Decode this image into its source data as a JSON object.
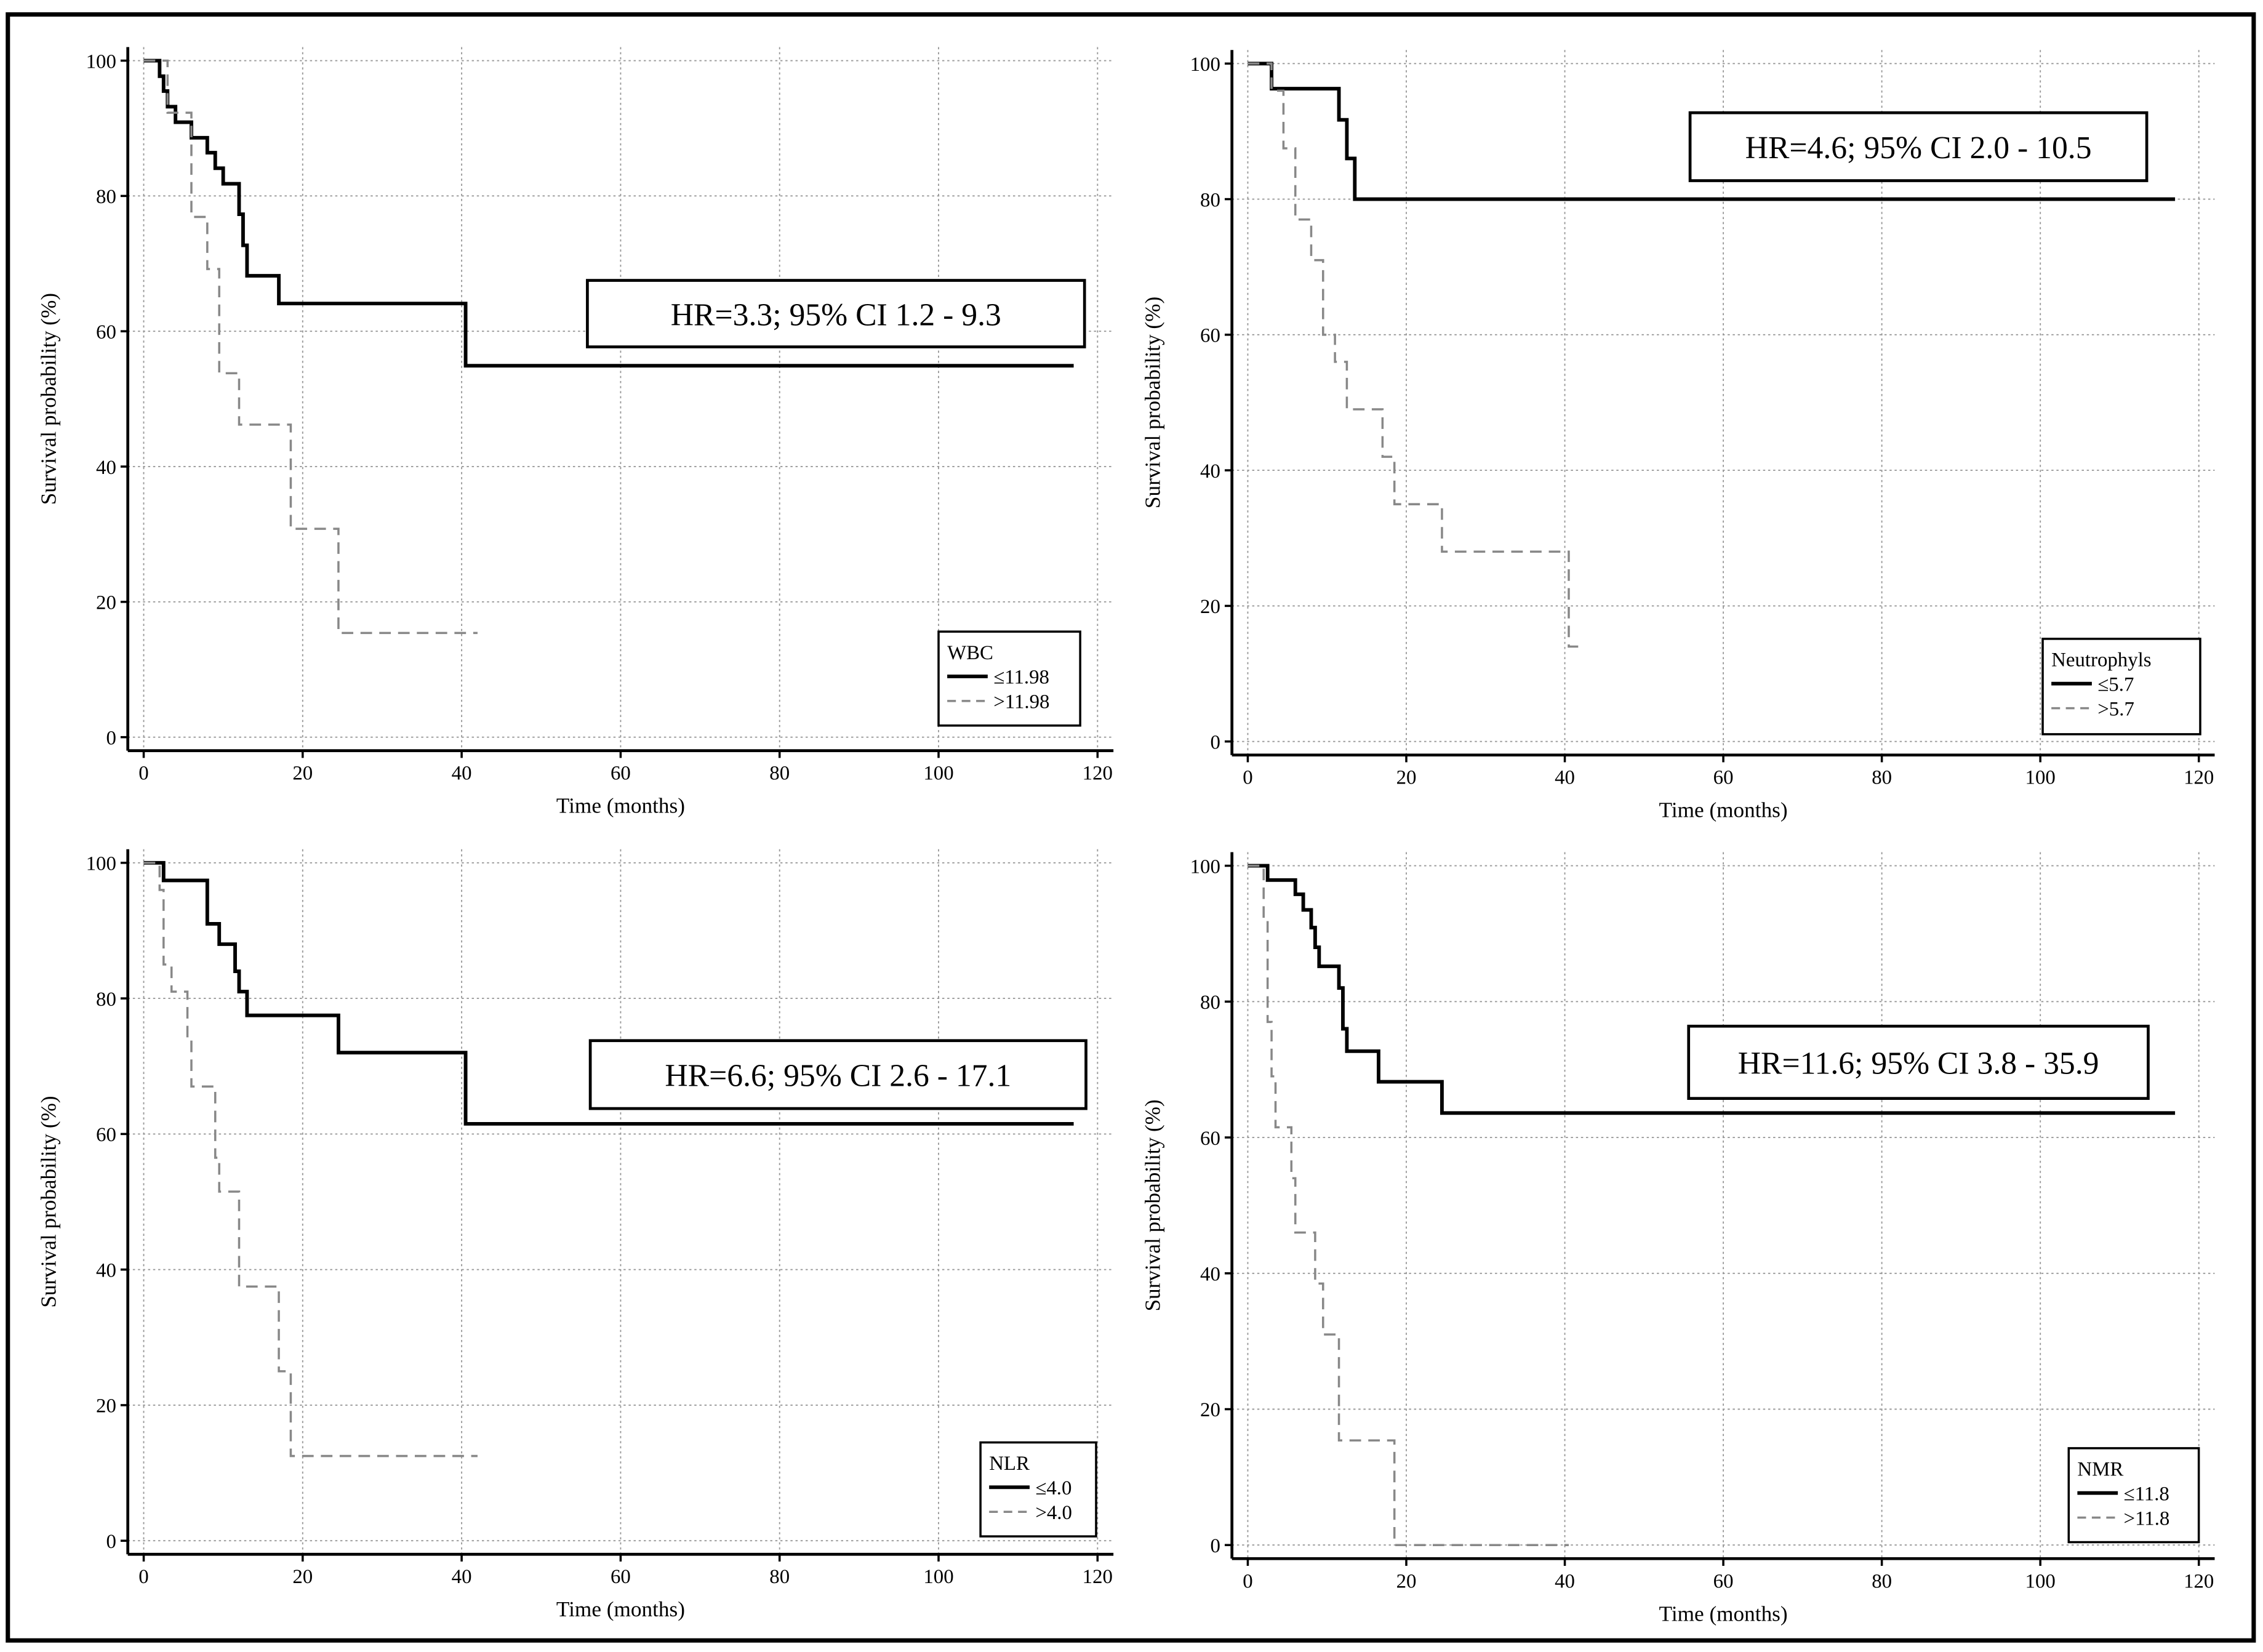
{
  "chart_data": [
    {
      "type": "line",
      "xlabel": "Time (months)",
      "ylabel": "Survival probability (%)",
      "xlim": [
        -2,
        122
      ],
      "ylim": [
        -2,
        102
      ],
      "xticks": [
        0,
        20,
        40,
        60,
        80,
        100,
        120
      ],
      "yticks": [
        0,
        20,
        40,
        60,
        80,
        100
      ],
      "grid": true,
      "annotation": "HR=3.3; 95% CI 1.2 - 9.3",
      "legend": "lower right",
      "legend_title": "WBC",
      "series": [
        {
          "name": "≤11.98",
          "color": "#000000",
          "linestyle": "solid",
          "x": [
            0,
            2,
            2.5,
            3,
            4,
            6,
            8,
            9,
            10,
            12,
            12.5,
            13,
            17,
            40.5,
            117
          ],
          "values": [
            100,
            97.7,
            95.5,
            93.2,
            90.9,
            88.6,
            86.4,
            84.1,
            81.8,
            77.3,
            72.7,
            68.2,
            64.1,
            54.9,
            54.9
          ]
        },
        {
          "name": ">11.98",
          "color": "#888888",
          "linestyle": "dashed",
          "x": [
            0,
            3,
            6,
            8,
            9.5,
            12,
            18.5,
            24.5,
            42
          ],
          "values": [
            100,
            92.3,
            76.9,
            69.2,
            53.8,
            46.2,
            30.8,
            15.4,
            15.4
          ]
        }
      ]
    },
    {
      "type": "line",
      "xlabel": "Time (months)",
      "ylabel": "Survival probability (%)",
      "xlim": [
        -2,
        122
      ],
      "ylim": [
        -2,
        102
      ],
      "xticks": [
        0,
        20,
        40,
        60,
        80,
        100,
        120
      ],
      "yticks": [
        0,
        20,
        40,
        60,
        80,
        100
      ],
      "grid": true,
      "annotation": "HR=4.6; 95% CI 2.0 - 10.5",
      "legend": "lower right",
      "legend_title": "Neutrophyls",
      "series": [
        {
          "name": "≤5.7",
          "color": "#000000",
          "linestyle": "solid",
          "x": [
            0,
            3,
            11.5,
            12.5,
            13.5,
            117
          ],
          "values": [
            100,
            96.3,
            91.7,
            86,
            80,
            80
          ]
        },
        {
          "name": ">5.7",
          "color": "#888888",
          "linestyle": "dashed",
          "x": [
            0,
            3,
            4.5,
            6,
            8,
            9.5,
            11,
            12.5,
            17,
            18.5,
            24.5,
            40.5,
            42
          ],
          "values": [
            100,
            96,
            87.5,
            77,
            71,
            60,
            56,
            49,
            42,
            35,
            28,
            14,
            14
          ]
        }
      ]
    },
    {
      "type": "line",
      "xlabel": "Time (months)",
      "ylabel": "Survival probability (%)",
      "xlim": [
        -2,
        122
      ],
      "ylim": [
        -2,
        102
      ],
      "xticks": [
        0,
        20,
        40,
        60,
        80,
        100,
        120
      ],
      "yticks": [
        0,
        20,
        40,
        60,
        80,
        100
      ],
      "grid": true,
      "annotation": "HR=6.6; 95% CI 2.6 - 17.1",
      "legend": "lower right",
      "legend_title": "NLR",
      "series": [
        {
          "name": "≤4.0",
          "color": "#000000",
          "linestyle": "solid",
          "x": [
            0,
            2.5,
            8,
            9.5,
            11.5,
            12,
            13,
            24.5,
            40.5,
            117
          ],
          "values": [
            100,
            97.4,
            91,
            88,
            84,
            81,
            77.5,
            72,
            61.5,
            61.5
          ]
        },
        {
          "name": ">4.0",
          "color": "#888888",
          "linestyle": "dashed",
          "x": [
            0,
            2,
            2.5,
            3.5,
            5.5,
            6,
            9,
            9.5,
            12,
            17,
            18.5,
            42
          ],
          "values": [
            100,
            96,
            85,
            81,
            74,
            67,
            56.5,
            51.5,
            37.5,
            25,
            12.5,
            12.5
          ]
        }
      ]
    },
    {
      "type": "line",
      "xlabel": "Time (months)",
      "ylabel": "Survival probability (%)",
      "xlim": [
        -2,
        122
      ],
      "ylim": [
        -2,
        102
      ],
      "xticks": [
        0,
        20,
        40,
        60,
        80,
        100,
        120
      ],
      "yticks": [
        0,
        20,
        40,
        60,
        80,
        100
      ],
      "grid": true,
      "annotation": "HR=11.6; 95% CI 3.8 - 35.9",
      "legend": "lower right",
      "legend_title": "NMR",
      "series": [
        {
          "name": "≤11.8",
          "color": "#000000",
          "linestyle": "solid",
          "x": [
            0,
            2.5,
            6,
            7,
            8,
            8.5,
            9,
            11.5,
            12,
            12.5,
            16.5,
            24.5,
            117
          ],
          "values": [
            100,
            97.9,
            95.8,
            93.5,
            90.9,
            88,
            85.2,
            82,
            76,
            72.7,
            68.2,
            63.6,
            63.6
          ]
        },
        {
          "name": ">11.8",
          "color": "#888888",
          "linestyle": "dashed",
          "x": [
            0,
            2,
            2.5,
            3,
            3.5,
            5.5,
            6,
            8.5,
            9.5,
            11.5,
            18.5,
            40.5
          ],
          "values": [
            100,
            92,
            77,
            69,
            61.5,
            54,
            46,
            38.5,
            31,
            15.4,
            0,
            0
          ]
        }
      ]
    }
  ]
}
